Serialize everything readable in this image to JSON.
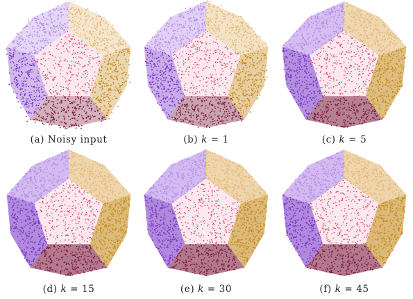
{
  "colors": {
    "face_top_left": "#b58be6",
    "face_top_right": "#e3b874",
    "face_left": "#7a37c6",
    "face_right": "#c4891d",
    "face_bottom": "#7d1c3f",
    "face_center_dot": "#e0406a",
    "face_center_bg": "#fbe9ef"
  },
  "panels": [
    {
      "label": "(a)",
      "text": "Noisy input",
      "var": "",
      "eq": "",
      "num": "",
      "noise": 1.0
    },
    {
      "label": "(b)",
      "text": "",
      "var": "k",
      "eq": "=",
      "num": "1",
      "noise": 0.75
    },
    {
      "label": "(c)",
      "text": "",
      "var": "k",
      "eq": "=",
      "num": "5",
      "noise": 0.15
    },
    {
      "label": "(d)",
      "text": "",
      "var": "k",
      "eq": "=",
      "num": "15",
      "noise": 0.05
    },
    {
      "label": "(e)",
      "text": "",
      "var": "k",
      "eq": "=",
      "num": "30",
      "noise": 0.03
    },
    {
      "label": "(f)",
      "text": "",
      "var": "k",
      "eq": "=",
      "num": "45",
      "noise": 0.02
    }
  ]
}
